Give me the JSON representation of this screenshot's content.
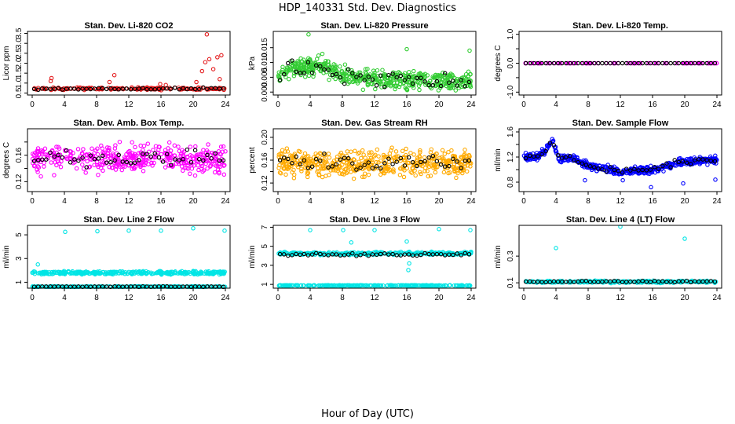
{
  "figure": {
    "title": "HDP_140331  Std. Dev. Diagnostics",
    "xlabel": "Hour of Day (UTC)"
  },
  "colors": {
    "mean": "#000000",
    "co2": "#e41a1c",
    "pressure": "#33cc33",
    "temp": "#ff00ff",
    "ambbox": "#ff00ff",
    "rh": "#ffaa00",
    "flow": "#0000ff",
    "line": "#00e5e5"
  },
  "chart_data": [
    {
      "type": "scatter",
      "title": "Stan. Dev. Li-820 CO2",
      "ylabel": "Licor ppm",
      "color_key": "co2",
      "xlim": [
        0,
        24
      ],
      "ylim": [
        0.4,
        3.6
      ],
      "xticks": [
        0,
        4,
        8,
        12,
        16,
        20,
        24
      ],
      "yticks": [
        0.5,
        1.0,
        1.5,
        2.0,
        2.5,
        3.0,
        3.5
      ],
      "ytick_labels": [
        "0.5",
        "1.0",
        "1.5",
        "2.0",
        "2.5",
        "3.0",
        "3.5"
      ],
      "series": [
        {
          "role": "samples",
          "base": 0.72,
          "spread": 0.06,
          "count": 190,
          "seed": 11,
          "points": [
            [
              2.3,
              1.1
            ],
            [
              2.4,
              1.25
            ],
            [
              9.6,
              1.05
            ],
            [
              10.2,
              1.4
            ],
            [
              15.9,
              0.95
            ],
            [
              16.6,
              0.9
            ],
            [
              20.4,
              1.05
            ],
            [
              21.1,
              1.6
            ],
            [
              21.5,
              2.05
            ],
            [
              21.7,
              3.45
            ],
            [
              22.0,
              2.2
            ],
            [
              22.5,
              1.7
            ],
            [
              23.0,
              2.3
            ],
            [
              23.3,
              1.2
            ],
            [
              23.5,
              2.4
            ]
          ]
        },
        {
          "role": "means",
          "base": 0.72,
          "spread": 0.05,
          "count": 48,
          "seed": 12
        }
      ]
    },
    {
      "type": "scatter",
      "title": "Stan. Dev. Li-820 Pressure",
      "ylabel": "kPa",
      "color_key": "pressure",
      "xlim": [
        0,
        24
      ],
      "ylim": [
        -0.001,
        0.0205
      ],
      "xticks": [
        0,
        4,
        8,
        12,
        16,
        20,
        24
      ],
      "yticks": [
        0.0,
        0.005,
        0.01,
        0.015
      ],
      "ytick_labels": [
        "0.000",
        "0.005",
        "0.010",
        "0.015"
      ],
      "series": [
        {
          "role": "samples",
          "trend": [
            [
              0,
              0.0065
            ],
            [
              3,
              0.0085
            ],
            [
              6,
              0.0085
            ],
            [
              8,
              0.0055
            ],
            [
              12,
              0.0045
            ],
            [
              24,
              0.0035
            ]
          ],
          "spread": 0.003,
          "count": 520,
          "seed": 21,
          "points": [
            [
              3.8,
              0.0195
            ],
            [
              16.0,
              0.0145
            ],
            [
              23.8,
              0.014
            ]
          ]
        },
        {
          "role": "means",
          "trend": [
            [
              0,
              0.0065
            ],
            [
              3,
              0.0085
            ],
            [
              6,
              0.0085
            ],
            [
              8,
              0.0055
            ],
            [
              12,
              0.0045
            ],
            [
              24,
              0.0035
            ]
          ],
          "spread": 0.003,
          "count": 48,
          "seed": 22
        }
      ]
    },
    {
      "type": "scatter",
      "title": "Stan. Dev. Li-820 Temp.",
      "ylabel": "degrees C",
      "color_key": "temp",
      "xlim": [
        0,
        24
      ],
      "ylim": [
        -1.1,
        1.1
      ],
      "xticks": [
        0,
        4,
        8,
        12,
        16,
        20,
        24
      ],
      "yticks": [
        -1.0,
        -0.5,
        0.0,
        0.5,
        1.0
      ],
      "ytick_labels": [
        "-1.0",
        "",
        "0.0",
        "",
        "1.0"
      ],
      "series": [
        {
          "role": "samples",
          "base": 0.0,
          "spread": 0.0,
          "count": 72,
          "seed": 31
        },
        {
          "role": "means",
          "base": 0.0,
          "spread": 0.0,
          "count": 48,
          "seed": 32
        }
      ]
    },
    {
      "type": "scatter",
      "title": "Stan. Dev. Amb. Box Temp.",
      "ylabel": "degrees C",
      "color_key": "ambbox",
      "xlim": [
        0,
        24
      ],
      "ylim": [
        0.105,
        0.2
      ],
      "xticks": [
        0,
        4,
        8,
        12,
        16,
        20,
        24
      ],
      "yticks": [
        0.12,
        0.14,
        0.16,
        0.18
      ],
      "ytick_labels": [
        "0.12",
        "",
        "0.16",
        ""
      ],
      "series": [
        {
          "role": "samples",
          "base": 0.155,
          "spread": 0.02,
          "count": 420,
          "seed": 41
        },
        {
          "role": "means",
          "base": 0.155,
          "spread": 0.012,
          "count": 48,
          "seed": 42
        }
      ]
    },
    {
      "type": "scatter",
      "title": "Stan. Dev. Gas Stream RH",
      "ylabel": "percent",
      "color_key": "rh",
      "xlim": [
        0,
        24
      ],
      "ylim": [
        0.105,
        0.215
      ],
      "xticks": [
        0,
        4,
        8,
        12,
        16,
        20,
        24
      ],
      "yticks": [
        0.12,
        0.14,
        0.16,
        0.18,
        0.2
      ],
      "ytick_labels": [
        "0.12",
        "",
        "0.16",
        "",
        "0.20"
      ],
      "series": [
        {
          "role": "samples",
          "base": 0.155,
          "spread": 0.022,
          "count": 480,
          "seed": 51
        },
        {
          "role": "means",
          "base": 0.155,
          "spread": 0.013,
          "count": 48,
          "seed": 52
        }
      ]
    },
    {
      "type": "scatter",
      "title": "Stan. Dev. Sample Flow",
      "ylabel": "ml/min",
      "color_key": "flow",
      "xlim": [
        0,
        24
      ],
      "ylim": [
        0.65,
        1.65
      ],
      "xticks": [
        0,
        4,
        8,
        12,
        16,
        20,
        24
      ],
      "yticks": [
        0.8,
        1.0,
        1.2,
        1.4,
        1.6
      ],
      "ytick_labels": [
        "0.8",
        "",
        "1.2",
        "",
        "1.6"
      ],
      "series": [
        {
          "role": "samples",
          "trend": [
            [
              0,
              1.18
            ],
            [
              2,
              1.22
            ],
            [
              3.6,
              1.45
            ],
            [
              4.5,
              1.15
            ],
            [
              6,
              1.2
            ],
            [
              8,
              1.05
            ],
            [
              12,
              0.97
            ],
            [
              16,
              1.0
            ],
            [
              19,
              1.12
            ],
            [
              24,
              1.15
            ]
          ],
          "spread": 0.06,
          "count": 460,
          "seed": 61,
          "points": [
            [
              12.3,
              0.83
            ],
            [
              15.8,
              0.72
            ],
            [
              19.8,
              0.78
            ],
            [
              23.8,
              0.84
            ],
            [
              7.6,
              0.83
            ]
          ]
        },
        {
          "role": "means",
          "trend": [
            [
              0,
              1.18
            ],
            [
              2,
              1.22
            ],
            [
              3.6,
              1.45
            ],
            [
              4.5,
              1.15
            ],
            [
              6,
              1.2
            ],
            [
              8,
              1.05
            ],
            [
              12,
              0.97
            ],
            [
              16,
              1.0
            ],
            [
              19,
              1.12
            ],
            [
              24,
              1.15
            ]
          ],
          "spread": 0.04,
          "count": 48,
          "seed": 62
        }
      ]
    },
    {
      "type": "scatter",
      "title": "Stan. Dev. Line 2 Flow",
      "ylabel": "ml/min",
      "color_key": "line",
      "xlim": [
        0,
        24
      ],
      "ylim": [
        0.5,
        5.8
      ],
      "xticks": [
        0,
        4,
        8,
        12,
        16,
        20,
        24
      ],
      "yticks": [
        1,
        3,
        5
      ],
      "ytick_labels": [
        "1",
        "3",
        "5"
      ],
      "series": [
        {
          "role": "samples",
          "base": 1.8,
          "spread": 0.12,
          "count": 340,
          "seed": 71,
          "points": [
            [
              0.7,
              2.5
            ],
            [
              4.1,
              5.25
            ],
            [
              8.1,
              5.3
            ],
            [
              12.0,
              5.35
            ],
            [
              16.0,
              5.35
            ],
            [
              20.0,
              5.55
            ],
            [
              23.9,
              5.35
            ]
          ]
        },
        {
          "role": "samples",
          "base": 0.63,
          "spread": 0.02,
          "count": 260,
          "seed": 72
        },
        {
          "role": "means",
          "base": 0.63,
          "spread": 0.02,
          "count": 48,
          "seed": 73
        }
      ]
    },
    {
      "type": "scatter",
      "title": "Stan. Dev. Line 3 Flow",
      "ylabel": "ml/min",
      "color_key": "line",
      "xlim": [
        0,
        24
      ],
      "ylim": [
        0.6,
        7.2
      ],
      "xticks": [
        0,
        4,
        8,
        12,
        16,
        20,
        24
      ],
      "yticks": [
        1,
        3,
        5,
        7
      ],
      "ytick_labels": [
        "1",
        "3",
        "5",
        "7"
      ],
      "series": [
        {
          "role": "samples",
          "base": 4.25,
          "spread": 0.15,
          "count": 300,
          "seed": 81,
          "points": [
            [
              4.0,
              6.7
            ],
            [
              8.1,
              6.7
            ],
            [
              9.1,
              5.4
            ],
            [
              12.0,
              6.7
            ],
            [
              16.0,
              5.5
            ],
            [
              16.3,
              3.2
            ],
            [
              16.2,
              2.5
            ],
            [
              20.0,
              6.8
            ],
            [
              23.9,
              6.7
            ]
          ]
        },
        {
          "role": "samples",
          "base": 0.88,
          "spread": 0.03,
          "count": 260,
          "seed": 82
        },
        {
          "role": "means",
          "base": 4.15,
          "spread": 0.15,
          "count": 48,
          "seed": 83
        }
      ]
    },
    {
      "type": "scatter",
      "title": "Stan. Dev. Line 4 (LT) Flow",
      "ylabel": "ml/min",
      "color_key": "line",
      "xlim": [
        0,
        24
      ],
      "ylim": [
        0.06,
        0.53
      ],
      "xticks": [
        0,
        4,
        8,
        12,
        16,
        20,
        24
      ],
      "yticks": [
        0.1,
        0.3
      ],
      "ytick_labels": [
        "0.1",
        "0.3"
      ],
      "series": [
        {
          "role": "samples",
          "base": 0.108,
          "spread": 0.008,
          "count": 300,
          "seed": 91,
          "points": [
            [
              4.0,
              0.36
            ],
            [
              12.0,
              0.52
            ],
            [
              20.0,
              0.43
            ]
          ]
        },
        {
          "role": "means",
          "base": 0.108,
          "spread": 0.006,
          "count": 48,
          "seed": 92
        }
      ]
    }
  ]
}
